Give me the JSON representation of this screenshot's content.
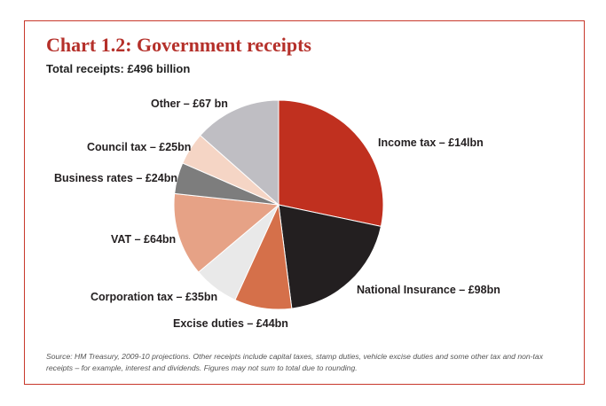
{
  "chart_data": {
    "type": "pie",
    "title": "Chart 1.2: Government receipts",
    "subtitle": "Total receipts: £496 billion",
    "unit": "£bn",
    "slices": [
      {
        "label": "Income tax – £14lbn",
        "category": "Income tax",
        "value": 141,
        "color": "#c0301f"
      },
      {
        "label": "National Insurance – £98bn",
        "category": "National Insurance",
        "value": 98,
        "color": "#231f20"
      },
      {
        "label": "Excise duties – £44bn",
        "category": "Excise duties",
        "value": 44,
        "color": "#d5704a"
      },
      {
        "label": "Corporation tax – £35bn",
        "category": "Corporation tax",
        "value": 35,
        "color": "#e9e9e9"
      },
      {
        "label": "VAT – £64bn",
        "category": "VAT",
        "value": 64,
        "color": "#e6a286"
      },
      {
        "label": "Business rates – £24bn",
        "category": "Business rates",
        "value": 24,
        "color": "#7d7d7d"
      },
      {
        "label": "Council tax – £25bn",
        "category": "Council tax",
        "value": 25,
        "color": "#f5d5c5"
      },
      {
        "label": "Other – £67 bn",
        "category": "Other",
        "value": 67,
        "color": "#bfbec3"
      }
    ],
    "source_note": "Source: HM Treasury, 2009-10 projections. Other receipts include capital taxes, stamp duties, vehicle excise duties and some other tax and non-tax receipts – for example, interest and dividends. Figures may not sum to total due to rounding."
  }
}
